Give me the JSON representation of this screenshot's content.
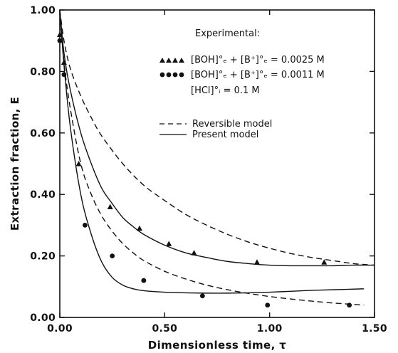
{
  "chart_data": {
    "type": "line",
    "xlabel": "Dimensionless time, τ",
    "ylabel": "Extraction fraction, E",
    "xlim": [
      0,
      1.5
    ],
    "ylim": [
      0,
      1.0
    ],
    "x_ticks": [
      "0.00",
      "0.50",
      "1.00",
      "1.50"
    ],
    "y_ticks": [
      "0.00",
      "0.20",
      "0.40",
      "0.60",
      "0.80",
      "1.00"
    ],
    "grid": false,
    "legend": {
      "position": "top-right",
      "experimental_title": "Experimental:",
      "triangle_label": "[BOH]°ₑ + [B⁺]°ₑ = 0.0025 M",
      "circle_label": "[BOH]°ₑ + [B⁺]°ₑ = 0.0011 M",
      "hcl_label": "[HCl]°ᵢ = 0.1 M",
      "reversible_label": "Reversible model",
      "present_label": "Present model"
    },
    "series": [
      {
        "name": "Reversible model",
        "style": "dashed",
        "x": [
          0,
          0.02,
          0.05,
          0.1,
          0.15,
          0.2,
          0.3,
          0.4,
          0.5,
          0.6,
          0.7,
          0.8,
          0.9,
          1.0,
          1.1,
          1.2,
          1.3,
          1.4,
          1.5
        ],
        "y": [
          1.0,
          0.9,
          0.81,
          0.72,
          0.65,
          0.59,
          0.5,
          0.43,
          0.38,
          0.335,
          0.3,
          0.27,
          0.245,
          0.225,
          0.208,
          0.195,
          0.185,
          0.175,
          0.17
        ]
      },
      {
        "name": "Present model",
        "style": "solid",
        "x": [
          0,
          0.02,
          0.05,
          0.1,
          0.15,
          0.2,
          0.25,
          0.3,
          0.35,
          0.4,
          0.5,
          0.6,
          0.7,
          0.8,
          0.9,
          1.0,
          1.1,
          1.2,
          1.3,
          1.4,
          1.5
        ],
        "y": [
          1.0,
          0.86,
          0.74,
          0.6,
          0.5,
          0.42,
          0.37,
          0.325,
          0.295,
          0.27,
          0.235,
          0.21,
          0.195,
          0.182,
          0.175,
          0.17,
          0.168,
          0.168,
          0.168,
          0.17,
          0.17
        ]
      },
      {
        "name": "Reversible model",
        "style": "dashed",
        "x": [
          0,
          0.02,
          0.05,
          0.1,
          0.15,
          0.2,
          0.25,
          0.3,
          0.35,
          0.4,
          0.5,
          0.6,
          0.7,
          0.8,
          0.9,
          1.0,
          1.1,
          1.2,
          1.3,
          1.45
        ],
        "y": [
          1.0,
          0.83,
          0.68,
          0.5,
          0.4,
          0.33,
          0.28,
          0.24,
          0.21,
          0.185,
          0.15,
          0.125,
          0.105,
          0.09,
          0.078,
          0.068,
          0.06,
          0.053,
          0.047,
          0.04
        ]
      },
      {
        "name": "Present model",
        "style": "solid",
        "x": [
          0,
          0.02,
          0.05,
          0.1,
          0.15,
          0.2,
          0.25,
          0.3,
          0.35,
          0.4,
          0.5,
          0.6,
          0.7,
          0.8,
          0.9,
          1.0,
          1.1,
          1.2,
          1.3,
          1.45
        ],
        "y": [
          1.0,
          0.82,
          0.62,
          0.4,
          0.27,
          0.18,
          0.13,
          0.105,
          0.093,
          0.087,
          0.082,
          0.08,
          0.079,
          0.079,
          0.08,
          0.082,
          0.085,
          0.088,
          0.09,
          0.093
        ]
      },
      {
        "name": "[BOH]°ₑ + [B⁺]°ₑ = 0.0025 M",
        "marker": "triangle",
        "x": [
          0.0,
          0.02,
          0.09,
          0.24,
          0.38,
          0.52,
          0.64,
          0.94,
          1.26
        ],
        "y": [
          0.92,
          0.83,
          0.5,
          0.36,
          0.29,
          0.24,
          0.21,
          0.18,
          0.18
        ]
      },
      {
        "name": "[BOH]°ₑ + [B⁺]°ₑ = 0.0011 M",
        "marker": "circle",
        "x": [
          0.0,
          0.02,
          0.12,
          0.25,
          0.4,
          0.68,
          0.99,
          1.38
        ],
        "y": [
          0.9,
          0.79,
          0.3,
          0.2,
          0.12,
          0.07,
          0.04,
          0.04
        ]
      }
    ]
  }
}
